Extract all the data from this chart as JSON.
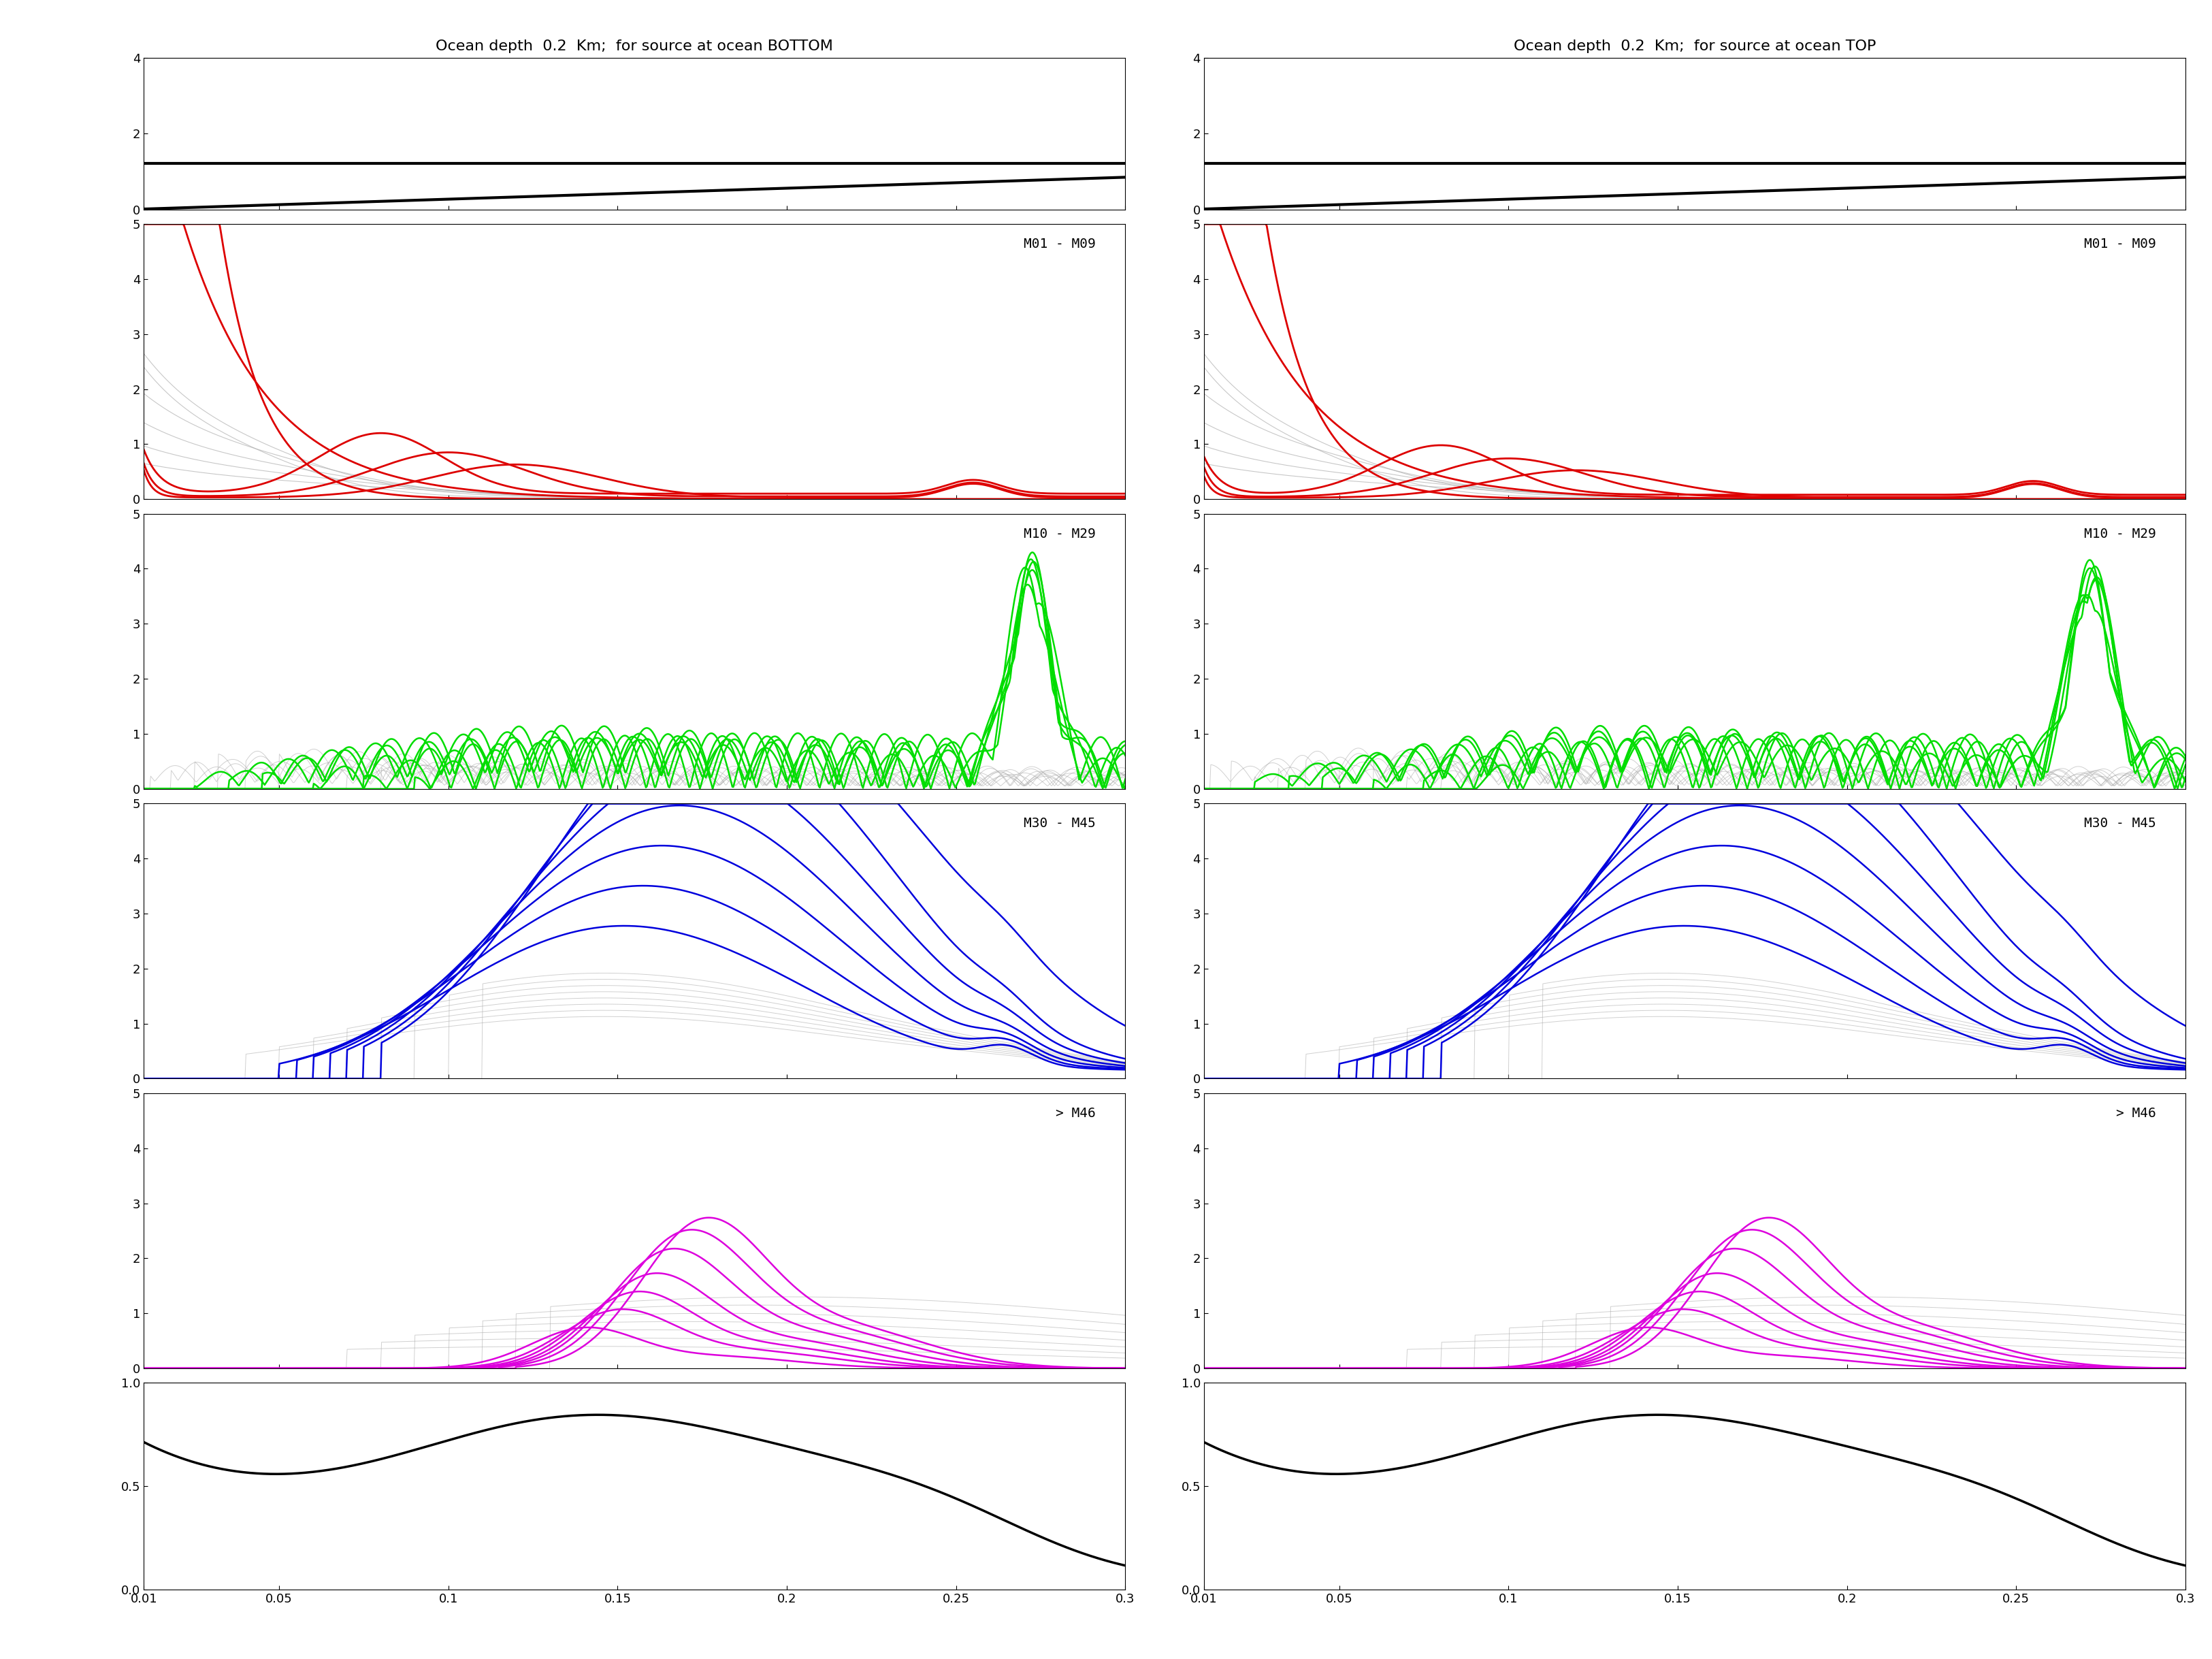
{
  "title_left": "Ocean depth  0.2  Km;  for source at ocean BOTTOM",
  "title_right": "Ocean depth  0.2  Km;  for source at ocean TOP",
  "xmin": 0.01,
  "xmax": 0.3,
  "xticks": [
    0.01,
    0.05,
    0.1,
    0.15,
    0.2,
    0.25,
    0.3
  ],
  "xtick_labels": [
    "0.01",
    "0.05",
    "0.1",
    "0.15",
    "0.2",
    "0.25",
    "0.3"
  ],
  "panel0_ylim": [
    0,
    4
  ],
  "panel0_yticks": [
    0,
    2,
    4
  ],
  "panel1_ylim": [
    0,
    5
  ],
  "panel1_yticks": [
    0,
    1,
    2,
    3,
    4,
    5
  ],
  "panel2_ylim": [
    0,
    5
  ],
  "panel2_yticks": [
    0,
    1,
    2,
    3,
    4,
    5
  ],
  "panel3_ylim": [
    0,
    5
  ],
  "panel3_yticks": [
    0,
    1,
    2,
    3,
    4,
    5
  ],
  "panel4_ylim": [
    0,
    5
  ],
  "panel4_yticks": [
    0,
    1,
    2,
    3,
    4,
    5
  ],
  "panel5_ylim": [
    0,
    1
  ],
  "panel5_yticks": [
    0,
    0.5,
    1
  ],
  "label1": "M01 - M09",
  "label2": "M10 - M29",
  "label3": "M30 - M45",
  "label4": "> M46",
  "color_red": "#dd0000",
  "color_green": "#00dd00",
  "color_blue": "#0000dd",
  "color_magenta": "#dd00dd",
  "color_gray": "#aaaaaa",
  "color_black": "#000000",
  "background_color": "#ffffff",
  "title_fontsize": 16,
  "label_fontsize": 14,
  "tick_fontsize": 13,
  "height_ratios": [
    2.2,
    4.0,
    4.0,
    4.0,
    4.0,
    3.0
  ]
}
